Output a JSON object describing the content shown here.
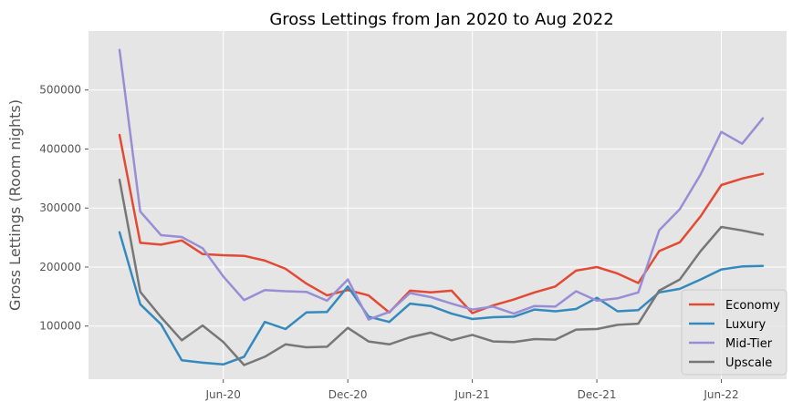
{
  "chart_data": {
    "type": "line",
    "title": "Gross Lettings from Jan 2020 to Aug 2022",
    "xlabel": "",
    "ylabel": "Gross Lettings (Room nights)",
    "x": [
      "2020-01",
      "2020-02",
      "2020-03",
      "2020-04",
      "2020-05",
      "2020-06",
      "2020-07",
      "2020-08",
      "2020-09",
      "2020-10",
      "2020-11",
      "2020-12",
      "2021-01",
      "2021-02",
      "2021-03",
      "2021-04",
      "2021-05",
      "2021-06",
      "2021-07",
      "2021-08",
      "2021-09",
      "2021-10",
      "2021-11",
      "2021-12",
      "2022-01",
      "2022-02",
      "2022-03",
      "2022-04",
      "2022-05",
      "2022-06",
      "2022-07",
      "2022-08"
    ],
    "x_ticks": [
      {
        "label": "Jun-20",
        "x": "2020-06"
      },
      {
        "label": "Dec-20",
        "x": "2020-12"
      },
      {
        "label": "Jun-21",
        "x": "2021-06"
      },
      {
        "label": "Dec-21",
        "x": "2021-12"
      },
      {
        "label": "Jun-22",
        "x": "2022-06"
      }
    ],
    "y_ticks": [
      {
        "label": "100000",
        "value": 100000
      },
      {
        "label": "200000",
        "value": 200000
      },
      {
        "label": "300000",
        "value": 300000
      },
      {
        "label": "400000",
        "value": 400000
      },
      {
        "label": "500000",
        "value": 500000
      }
    ],
    "ylim": [
      10000,
      600000
    ],
    "grid": true,
    "legend_position": "bottom-right",
    "background": "#e5e5e5",
    "series": [
      {
        "name": "Economy",
        "color": "#e24a33",
        "values": [
          424000,
          241000,
          238000,
          245000,
          222000,
          220000,
          219000,
          211000,
          197000,
          172000,
          152000,
          161000,
          152000,
          123000,
          160000,
          157000,
          160000,
          122000,
          135000,
          145000,
          157000,
          167000,
          194000,
          200000,
          189000,
          173000,
          227000,
          242000,
          286000,
          339000,
          350000,
          358000
        ]
      },
      {
        "name": "Luxury",
        "color": "#348abd",
        "values": [
          259000,
          137000,
          103000,
          42000,
          38000,
          35000,
          48000,
          107000,
          95000,
          123000,
          124000,
          167000,
          116000,
          107000,
          138000,
          134000,
          121000,
          112000,
          115000,
          116000,
          128000,
          125000,
          129000,
          148000,
          125000,
          127000,
          157000,
          163000,
          179000,
          196000,
          201000,
          202000
        ]
      },
      {
        "name": "Mid-Tier",
        "color": "#988ed5",
        "values": [
          568000,
          294000,
          254000,
          251000,
          232000,
          184000,
          144000,
          161000,
          159000,
          158000,
          143000,
          179000,
          111000,
          124000,
          156000,
          149000,
          138000,
          128000,
          133000,
          121000,
          134000,
          133000,
          159000,
          143000,
          147000,
          157000,
          262000,
          298000,
          357000,
          429000,
          409000,
          452000
        ]
      },
      {
        "name": "Upscale",
        "color": "#777777",
        "values": [
          348000,
          158000,
          115000,
          76000,
          101000,
          73000,
          34000,
          48000,
          69000,
          64000,
          65000,
          97000,
          74000,
          69000,
          81000,
          89000,
          76000,
          85000,
          74000,
          73000,
          78000,
          77000,
          94000,
          95000,
          102000,
          104000,
          160000,
          179000,
          227000,
          268000,
          262000,
          255000
        ]
      }
    ]
  }
}
